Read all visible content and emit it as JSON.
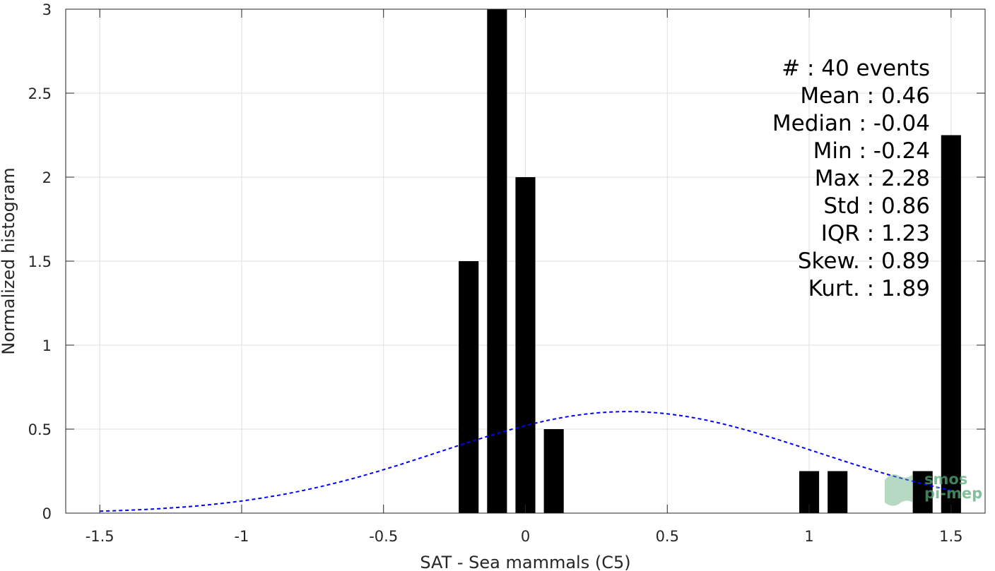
{
  "chart_data": {
    "type": "bar",
    "xlabel": "SAT - Sea mammals (C5)",
    "ylabel": "Normalized histogram",
    "xlim": [
      -1.62,
      1.62
    ],
    "ylim": [
      0,
      3
    ],
    "x_ticks": [
      -1.5,
      -1,
      -0.5,
      0,
      0.5,
      1,
      1.5
    ],
    "x_tick_labels": [
      "-1.5",
      "-1",
      "-0.5",
      "0",
      "0.5",
      "1",
      "1.5"
    ],
    "y_ticks": [
      0,
      0.5,
      1,
      1.5,
      2,
      2.5,
      3
    ],
    "y_tick_labels": [
      "0",
      "0.5",
      "1",
      "1.5",
      "2",
      "2.5",
      "3"
    ],
    "grid": true,
    "bar_width": 0.07,
    "bars": [
      {
        "x": -0.2,
        "value": 1.5
      },
      {
        "x": -0.1,
        "value": 3
      },
      {
        "x": 0.0,
        "value": 2
      },
      {
        "x": 0.1,
        "value": 0.5
      },
      {
        "x": 1.0,
        "value": 0.25
      },
      {
        "x": 1.1,
        "value": 0.25
      },
      {
        "x": 1.4,
        "value": 0.25
      },
      {
        "x": 1.5,
        "value": 2.25
      }
    ],
    "fit_curve": {
      "type": "normal",
      "mean": 0.36,
      "std": 0.66,
      "x_range": [
        -1.5,
        1.5
      ],
      "color": "#0000ff",
      "style": "dashed"
    },
    "bar_color": "#000000",
    "stats_text": [
      "#  : 40 events",
      "Mean : 0.46",
      "Median : -0.04",
      "Min : -0.24",
      "Max : 2.28",
      "Std : 0.86",
      "IQR : 1.23",
      "Skew. : 0.89",
      "Kurt. : 1.89"
    ]
  },
  "logo": {
    "line1": "smos",
    "line2": "pi-mep",
    "color": "#5aaa7a"
  }
}
